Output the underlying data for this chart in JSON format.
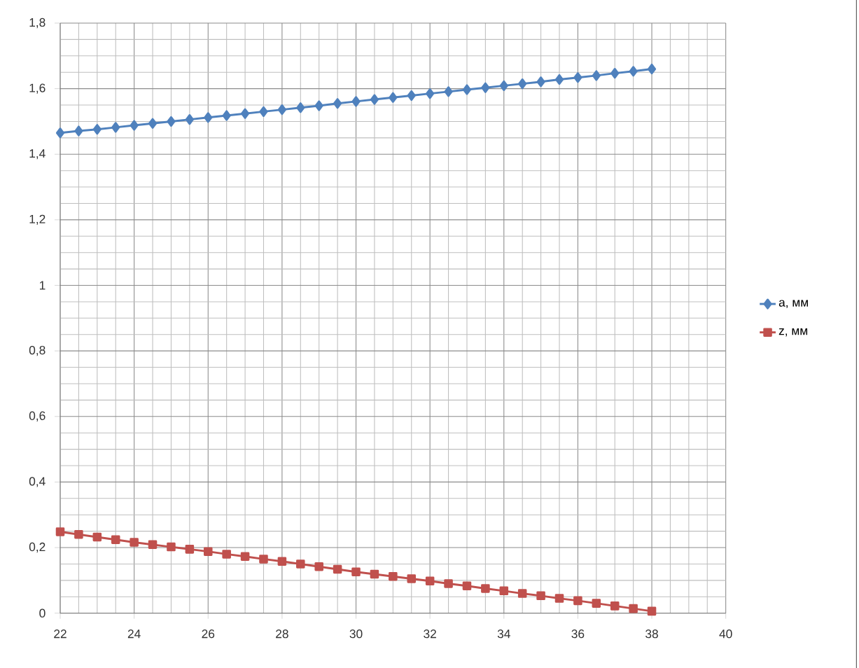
{
  "chart_data": {
    "type": "line",
    "x": [
      22,
      22.5,
      23,
      23.5,
      24,
      24.5,
      25,
      25.5,
      26,
      26.5,
      27,
      27.5,
      28,
      28.5,
      29,
      29.5,
      30,
      30.5,
      31,
      31.5,
      32,
      32.5,
      33,
      33.5,
      34,
      34.5,
      35,
      35.5,
      36,
      36.5,
      37,
      37.5,
      38
    ],
    "series": [
      {
        "name": "a, мм",
        "color": "#4f81bd",
        "marker": "diamond",
        "values": [
          1.465,
          1.471,
          1.476,
          1.482,
          1.488,
          1.494,
          1.5,
          1.506,
          1.512,
          1.518,
          1.524,
          1.53,
          1.536,
          1.542,
          1.548,
          1.555,
          1.561,
          1.567,
          1.573,
          1.579,
          1.585,
          1.591,
          1.597,
          1.603,
          1.609,
          1.615,
          1.621,
          1.628,
          1.634,
          1.64,
          1.647,
          1.653,
          1.66
        ]
      },
      {
        "name": "z, мм",
        "color": "#c0504d",
        "marker": "square",
        "values": [
          0.248,
          0.24,
          0.232,
          0.224,
          0.216,
          0.209,
          0.202,
          0.195,
          0.188,
          0.18,
          0.173,
          0.165,
          0.158,
          0.15,
          0.142,
          0.134,
          0.126,
          0.119,
          0.112,
          0.105,
          0.098,
          0.09,
          0.083,
          0.075,
          0.068,
          0.06,
          0.053,
          0.045,
          0.038,
          0.03,
          0.022,
          0.014,
          0.006
        ]
      }
    ],
    "xlim": [
      22,
      40
    ],
    "xticks": [
      22,
      24,
      26,
      28,
      30,
      32,
      34,
      36,
      38,
      40
    ],
    "ylim": [
      0,
      1.8
    ],
    "yticks": [
      0,
      {
        "value": 0.2,
        "label": "0,2"
      },
      {
        "value": 0.4,
        "label": "0,4"
      },
      {
        "value": 0.6,
        "label": "0,6"
      },
      {
        "value": 0.8,
        "label": "0,8"
      },
      1,
      {
        "value": 1.2,
        "label": "1,2"
      },
      {
        "value": 1.4,
        "label": "1,4"
      },
      {
        "value": 1.6,
        "label": "1,6"
      },
      {
        "value": 1.8,
        "label": "1,8"
      }
    ],
    "grid": true,
    "legend": "right",
    "line_style": "solid"
  }
}
